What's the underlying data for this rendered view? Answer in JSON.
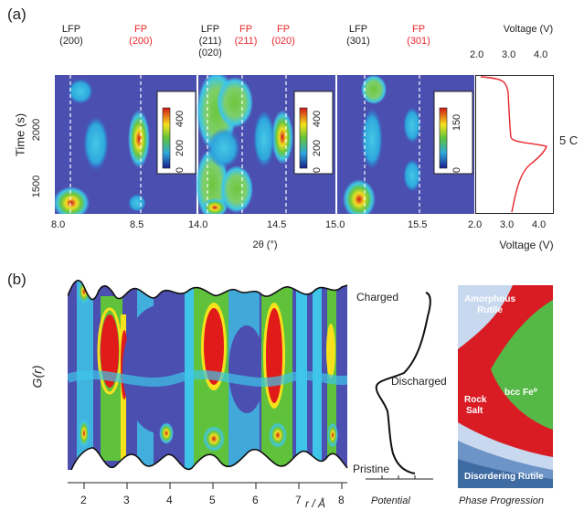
{
  "panel_a": {
    "letter": "(a)",
    "peak_labels": [
      {
        "name": "LFP",
        "hkl": "(200)",
        "color": "black"
      },
      {
        "name": "FP",
        "hkl": "(200)",
        "color": "red"
      },
      {
        "name": "LFP",
        "hkl": "(211)",
        "hkl2": "(020)",
        "color": "black"
      },
      {
        "name": "FP",
        "hkl": "(211)",
        "color": "red"
      },
      {
        "name": "FP",
        "hkl": "(020)",
        "color": "red"
      },
      {
        "name": "LFP",
        "hkl": "(301)",
        "color": "black"
      },
      {
        "name": "FP",
        "hkl": "(301)",
        "color": "red"
      }
    ],
    "y_axis_label": "Time (s)",
    "y_ticks": [
      "2000",
      "1500"
    ],
    "x_axis_label": "2θ (°)",
    "x_ticks_1": [
      "8.0",
      "8.5"
    ],
    "x_ticks_2": [
      "14.0",
      "14.5"
    ],
    "x_ticks_3": [
      "15.0",
      "15.5"
    ],
    "colorbar_1_ticks": [
      "400",
      "200",
      "0"
    ],
    "colorbar_2_ticks": [
      "400",
      "200",
      "0"
    ],
    "colorbar_3_ticks": [
      "150",
      "0"
    ],
    "voltage_axis_label_top": "Voltage (V)",
    "voltage_axis_label_bottom": "Voltage (V)",
    "voltage_ticks": [
      "2.0",
      "3.0",
      "4.0"
    ],
    "rate_label": "5 C"
  },
  "panel_b": {
    "letter": "(b)",
    "y_axis_label": "G(r)",
    "x_axis_label": "r / Å",
    "x_ticks": [
      "2",
      "3",
      "4",
      "5",
      "6",
      "7",
      "8"
    ],
    "potential_labels": {
      "charged": "Charged",
      "discharged": "Discharged",
      "pristine": "Pristine"
    },
    "potential_axis_label": "Potential",
    "phase_labels": {
      "amorphous": "Amorphous Rutile",
      "bcc": "bcc Fe⁰",
      "rocksalt_1": "Rock",
      "rocksalt_2": "Salt",
      "disordering": "Disordering Rutile"
    },
    "phase_axis_label": "Phase Progression"
  },
  "colors": {
    "background_blue": "#4b4fb0",
    "cyan": "#3ec5e8",
    "green": "#5fc23a",
    "yellow": "#f5e21c",
    "red": "#e11a1a",
    "phase_blue_light": "#c8d8ee",
    "phase_blue_dark": "#3f6ba3",
    "phase_red": "#d91c24",
    "phase_green": "#56b847"
  }
}
